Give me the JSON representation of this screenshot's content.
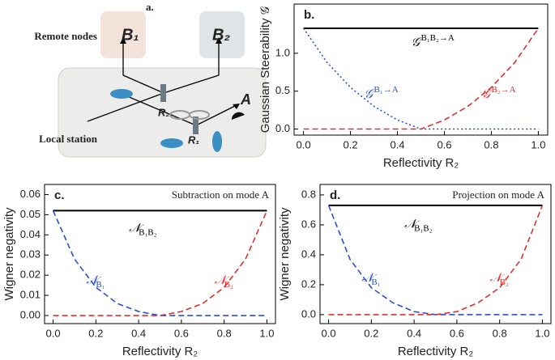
{
  "diagram": {
    "panel": "a.",
    "remote_label": "Remote nodes",
    "node_1": "B₁",
    "node_2": "B₂",
    "splitter_2": "R₂",
    "splitter_1": "R₁",
    "mode": "A",
    "local_label": "Local station"
  },
  "chart_data": [
    {
      "type": "line",
      "panel": "b.",
      "xlabel": "Reflectivity R₂",
      "ylabel": "Gaussian Steerability 𝒢",
      "xlim": [
        -0.04,
        1.04
      ],
      "ylim": [
        -0.08,
        1.65
      ],
      "xticks": [
        {
          "value": 0,
          "label": "0.0"
        },
        0.2,
        0.4,
        0.6,
        0.8,
        {
          "value": 1,
          "label": "1.0"
        }
      ],
      "yticks": [
        {
          "value": 0,
          "label": "0.0"
        },
        0.5,
        {
          "value": 1,
          "label": "1.0"
        }
      ],
      "grid": false,
      "x": [
        0,
        0.1,
        0.2,
        0.3,
        0.4,
        0.5,
        0.6,
        0.7,
        0.8,
        0.9,
        1
      ],
      "series": [
        {
          "name": "𝒢",
          "name_superscript": "B₁B₂→A",
          "color": "#000000",
          "style": "solid",
          "values": [
            1.33,
            1.33,
            1.33,
            1.33,
            1.33,
            1.33,
            1.33,
            1.33,
            1.33,
            1.33,
            1.33
          ]
        },
        {
          "name": "𝒢",
          "name_superscript": "B₁→A",
          "color": "#2a4fd6",
          "style": "dotted",
          "values": [
            1.33,
            0.88,
            0.55,
            0.3,
            0.12,
            0,
            0,
            0,
            0,
            0,
            0
          ]
        },
        {
          "name": "𝒢",
          "name_superscript": "B₂→A",
          "color": "#e03030",
          "style": "dashed",
          "values": [
            0,
            0,
            0,
            0,
            0,
            0,
            0.12,
            0.3,
            0.55,
            0.88,
            1.33
          ]
        }
      ]
    },
    {
      "type": "line",
      "panel": "c.",
      "annotation": "Subtraction on mode A",
      "xlabel": "Reflectivity R₂",
      "ylabel": "Wigner negativity",
      "xlim": [
        -0.04,
        1.04
      ],
      "ylim": [
        -0.004,
        0.065
      ],
      "xticks": [
        {
          "value": 0,
          "label": "0.0"
        },
        0.2,
        0.4,
        0.6,
        0.8,
        {
          "value": 1,
          "label": "1.0"
        }
      ],
      "yticks": [
        {
          "value": 0,
          "label": "0.00"
        },
        0.01,
        0.02,
        0.03,
        0.04,
        0.05,
        0.06
      ],
      "grid": false,
      "x": [
        0,
        0.1,
        0.2,
        0.3,
        0.4,
        0.5,
        0.6,
        0.7,
        0.8,
        0.9,
        1
      ],
      "series": [
        {
          "name": "𝒩",
          "name_subscript": "B₁B₂",
          "color": "#000000",
          "style": "solid",
          "values": [
            0.052,
            0.052,
            0.052,
            0.052,
            0.052,
            0.052,
            0.052,
            0.052,
            0.052,
            0.052,
            0.052
          ]
        },
        {
          "name": "𝒩",
          "name_subscript": "B₁",
          "color": "#2a4fd6",
          "style": "dashed",
          "values": [
            0.052,
            0.028,
            0.014,
            0.006,
            0.002,
            0,
            0,
            0,
            0,
            0,
            0
          ]
        },
        {
          "name": "𝒩",
          "name_subscript": "B₂",
          "color": "#e03030",
          "style": "dashed",
          "values": [
            0,
            0,
            0,
            0,
            0,
            0,
            0.002,
            0.006,
            0.014,
            0.028,
            0.052
          ]
        }
      ]
    },
    {
      "type": "line",
      "panel": "d.",
      "annotation": "Projection on mode A",
      "xlabel": "Reflectivity R₂",
      "ylabel": "Wigner negativity",
      "xlim": [
        -0.04,
        1.04
      ],
      "ylim": [
        -0.06,
        0.87
      ],
      "xticks": [
        {
          "value": 0,
          "label": "0.0"
        },
        0.2,
        0.4,
        0.6,
        0.8,
        {
          "value": 1,
          "label": "1.0"
        }
      ],
      "yticks": [
        {
          "value": 0,
          "label": "0.0"
        },
        0.2,
        0.4,
        0.6,
        0.8
      ],
      "grid": false,
      "x": [
        0,
        0.1,
        0.2,
        0.3,
        0.4,
        0.5,
        0.6,
        0.7,
        0.8,
        0.9,
        1
      ],
      "series": [
        {
          "name": "𝒩",
          "name_subscript": "B₁B₂",
          "color": "#000000",
          "style": "solid",
          "values": [
            0.73,
            0.73,
            0.73,
            0.73,
            0.73,
            0.73,
            0.73,
            0.73,
            0.73,
            0.73,
            0.73
          ]
        },
        {
          "name": "𝒩",
          "name_subscript": "B₁",
          "color": "#2a4fd6",
          "style": "dashed",
          "values": [
            0.73,
            0.37,
            0.18,
            0.08,
            0.02,
            0,
            0,
            0,
            0,
            0,
            0
          ]
        },
        {
          "name": "𝒩",
          "name_subscript": "B₂",
          "color": "#e03030",
          "style": "dashed",
          "values": [
            0,
            0,
            0,
            0,
            0,
            0,
            0.02,
            0.08,
            0.18,
            0.37,
            0.73
          ]
        }
      ]
    }
  ]
}
